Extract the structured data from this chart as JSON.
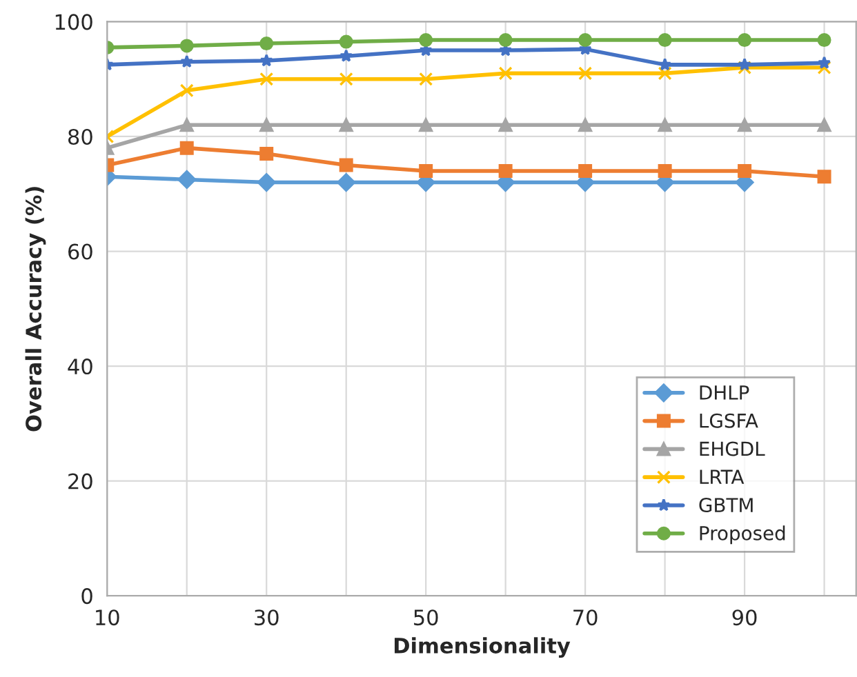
{
  "chart_data": {
    "type": "line",
    "xlabel": "Dimensionality",
    "ylabel": "Overall Accuracy (%)",
    "x": [
      10,
      20,
      30,
      40,
      50,
      60,
      70,
      80,
      90,
      100
    ],
    "xlim": [
      10,
      104
    ],
    "xticks": [
      10,
      {
        "value": 20,
        "label": null
      },
      30,
      {
        "value": 40,
        "label": null
      },
      50,
      {
        "value": 60,
        "label": null
      },
      70,
      {
        "value": 80,
        "label": null
      },
      90,
      {
        "value": 100,
        "label": null
      }
    ],
    "ylim": [
      0,
      100
    ],
    "yticks": [
      0,
      20,
      40,
      60,
      80,
      100
    ],
    "grid": true,
    "legend": "bottom right",
    "line_style": "solid",
    "series": [
      {
        "name": "DHLP",
        "color": "#5b9bd5",
        "marker": "diamond",
        "values": [
          73,
          72.5,
          72,
          72,
          72,
          72,
          72,
          72,
          72,
          null
        ]
      },
      {
        "name": "LGSFA",
        "color": "#ed7d31",
        "marker": "square",
        "values": [
          75,
          78,
          77,
          75,
          74,
          74,
          74,
          74,
          74,
          73
        ]
      },
      {
        "name": "EHGDL",
        "color": "#a5a5a5",
        "marker": "triangle",
        "values": [
          78,
          82,
          82,
          82,
          82,
          82,
          82,
          82,
          82,
          82
        ]
      },
      {
        "name": "LRTA",
        "color": "#ffc000",
        "marker": "cross",
        "values": [
          80,
          88,
          90,
          90,
          90,
          91,
          91,
          91,
          92,
          92
        ]
      },
      {
        "name": "GBTM",
        "color": "#4472c4",
        "marker": "star",
        "values": [
          92.5,
          93,
          93.2,
          94,
          95,
          95,
          95.2,
          92.5,
          92.5,
          92.8
        ]
      },
      {
        "name": "Proposed",
        "color": "#70ad47",
        "marker": "circle",
        "values": [
          95.5,
          95.8,
          96.2,
          96.5,
          96.8,
          96.8,
          96.8,
          96.8,
          96.8,
          96.8
        ]
      }
    ]
  }
}
